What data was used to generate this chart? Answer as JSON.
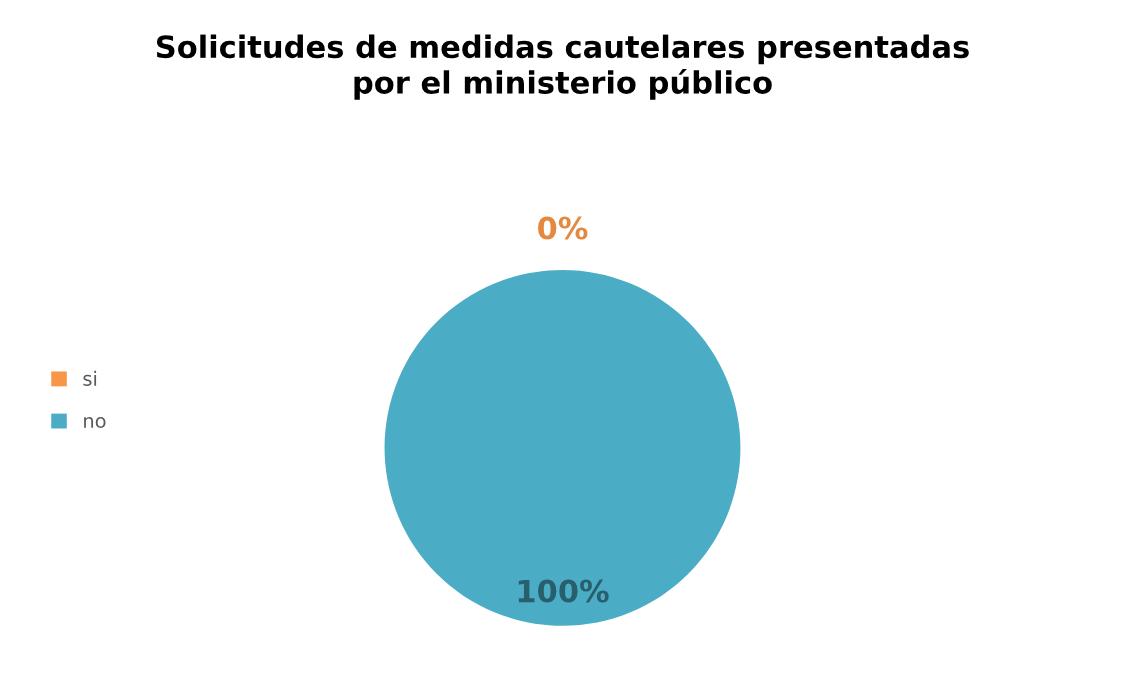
{
  "chart_data": {
    "type": "pie",
    "title": "Solicitudes de medidas cautelares presentadas\npor el ministerio público",
    "categories": [
      "si",
      "no"
    ],
    "values": [
      0,
      100
    ],
    "colors": [
      "#f79646",
      "#4bacc6"
    ],
    "value_labels": [
      "0%",
      "100%"
    ],
    "legend": "left"
  }
}
